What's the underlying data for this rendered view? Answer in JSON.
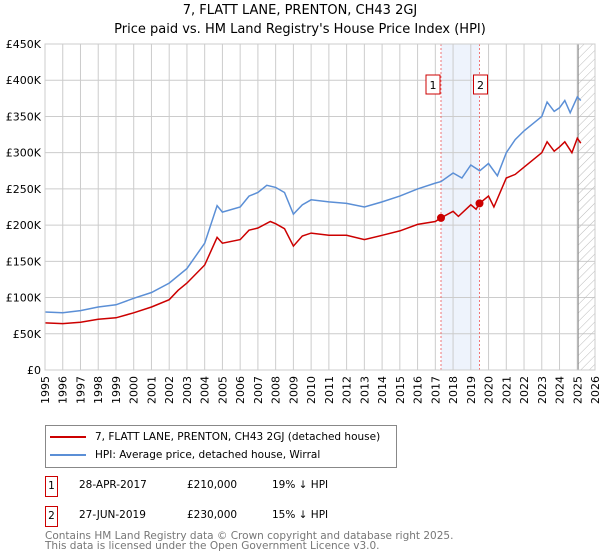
{
  "title": "7, FLATT LANE, PRENTON, CH43 2GJ",
  "subtitle": "Price paid vs. HM Land Registry's House Price Index (HPI)",
  "chart_data": {
    "type": "line",
    "xlim": [
      1995,
      2026
    ],
    "ylim": [
      0,
      450000
    ],
    "y_ticks": [
      0,
      50000,
      100000,
      150000,
      200000,
      250000,
      300000,
      350000,
      400000,
      450000
    ],
    "y_tick_labels": [
      "£0",
      "£50K",
      "£100K",
      "£150K",
      "£200K",
      "£250K",
      "£300K",
      "£350K",
      "£400K",
      "£450K"
    ],
    "x_ticks": [
      "1995",
      "1996",
      "1997",
      "1998",
      "1999",
      "2000",
      "2001",
      "2002",
      "2003",
      "2004",
      "2005",
      "2006",
      "2007",
      "2008",
      "2009",
      "2010",
      "2011",
      "2012",
      "2013",
      "2014",
      "2015",
      "2016",
      "2017",
      "2018",
      "2019",
      "2020",
      "2021",
      "2022",
      "2023",
      "2024",
      "2025",
      "2026"
    ],
    "grid": true,
    "forecast_hatch_from": 2025.05,
    "shaded_range": [
      2017.32,
      2019.49
    ],
    "series": [
      {
        "name": "7, FLATT LANE, PRENTON, CH43 2GJ (detached house)",
        "color": "#cc0000",
        "x": [
          1995,
          1996,
          1997,
          1998,
          1999,
          2000,
          2001,
          2002,
          2002.5,
          2003,
          2004,
          2004.7,
          2005,
          2006,
          2006.5,
          2007,
          2007.7,
          2008,
          2008.5,
          2009,
          2009.5,
          2010,
          2011,
          2012,
          2013,
          2014,
          2015,
          2016,
          2017,
          2017.32,
          2018,
          2018.3,
          2019,
          2019.3,
          2019.49,
          2020,
          2020.3,
          2021,
          2021.5,
          2022,
          2022.5,
          2023,
          2023.3,
          2023.7,
          2024,
          2024.3,
          2024.7,
          2025,
          2025.2
        ],
        "y": [
          65000,
          64000,
          66000,
          70000,
          72000,
          79000,
          87000,
          97000,
          110000,
          120000,
          145000,
          183000,
          175000,
          180000,
          193000,
          196000,
          205000,
          202000,
          195000,
          171000,
          185000,
          189000,
          186000,
          186000,
          180000,
          186000,
          192000,
          201000,
          205000,
          210000,
          219000,
          212000,
          228000,
          222000,
          230000,
          240000,
          225000,
          265000,
          270000,
          280000,
          290000,
          300000,
          315000,
          302000,
          308000,
          315000,
          300000,
          320000,
          313000
        ]
      },
      {
        "name": "HPI: Average price, detached house, Wirral",
        "color": "#5b8fd6",
        "x": [
          1995,
          1996,
          1997,
          1998,
          1999,
          2000,
          2001,
          2002,
          2003,
          2004,
          2004.7,
          2005,
          2006,
          2006.5,
          2007,
          2007.5,
          2008,
          2008.5,
          2009,
          2009.5,
          2010,
          2011,
          2012,
          2013,
          2014,
          2015,
          2016,
          2017,
          2017.32,
          2018,
          2018.5,
          2019,
          2019.5,
          2020,
          2020.5,
          2021,
          2021.5,
          2022,
          2022.5,
          2023,
          2023.3,
          2023.7,
          2024,
          2024.3,
          2024.6,
          2025,
          2025.2
        ],
        "y": [
          80000,
          79000,
          82000,
          87000,
          90000,
          99000,
          107000,
          120000,
          140000,
          175000,
          227000,
          218000,
          225000,
          240000,
          245000,
          255000,
          252000,
          245000,
          215000,
          228000,
          235000,
          232000,
          230000,
          225000,
          232000,
          240000,
          250000,
          258000,
          260000,
          272000,
          265000,
          283000,
          275000,
          285000,
          268000,
          300000,
          318000,
          330000,
          340000,
          350000,
          370000,
          357000,
          362000,
          372000,
          355000,
          377000,
          372000
        ]
      }
    ],
    "sales": [
      {
        "label": "1",
        "x": 2017.32,
        "y": 210000
      },
      {
        "label": "2",
        "x": 2019.49,
        "y": 230000
      }
    ]
  },
  "legend": {
    "property": "7, FLATT LANE, PRENTON, CH43 2GJ (detached house)",
    "hpi": "HPI: Average price, detached house, Wirral"
  },
  "transactions": [
    {
      "num": "1",
      "date": "28-APR-2017",
      "price": "£210,000",
      "hpi": "19% ↓ HPI"
    },
    {
      "num": "2",
      "date": "27-JUN-2019",
      "price": "£230,000",
      "hpi": "15% ↓ HPI"
    }
  ],
  "footer": {
    "line1": "Contains HM Land Registry data © Crown copyright and database right 2025.",
    "line2": "This data is licensed under the Open Government Licence v3.0."
  }
}
